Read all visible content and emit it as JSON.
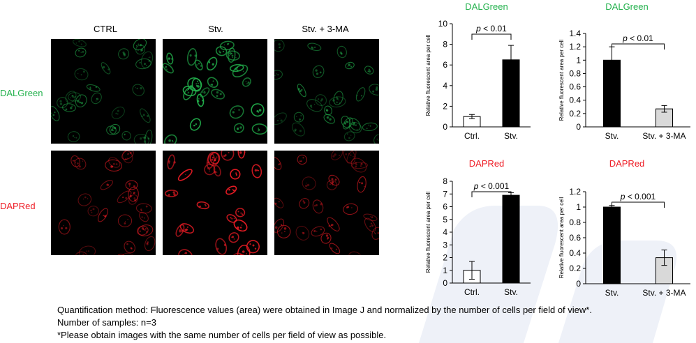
{
  "colors": {
    "green": "#22b14c",
    "red": "#ee1c25",
    "stv_bar": "#000000",
    "ctrl_bar": "#ffffff",
    "ma_bar": "#d9d9d9"
  },
  "microscopy": {
    "columns": [
      "CTRL",
      "Stv.",
      "Stv. + 3-MA"
    ],
    "rows": [
      "DALGreen",
      "DAPRed"
    ]
  },
  "chart_data": [
    {
      "type": "bar",
      "title": "DALGreen",
      "categories": [
        "Ctrl.",
        "Stv."
      ],
      "values": [
        1.0,
        6.5
      ],
      "errors": [
        0.2,
        1.4
      ],
      "ylabel": "Relative fluorescent area per cell",
      "ylim": [
        0,
        10
      ],
      "yticks": [
        "0",
        "2",
        "4",
        "6",
        "8",
        "10"
      ],
      "annotation": "p < 0.01"
    },
    {
      "type": "bar",
      "title": "DALGreen",
      "categories": [
        "Stv.",
        "Stv. + 3-MA"
      ],
      "values": [
        1.0,
        0.27
      ],
      "errors": [
        0.2,
        0.05
      ],
      "ylabel": "Relative fluorescent area per cell",
      "ylim": [
        0,
        1.4
      ],
      "yticks": [
        "0",
        "0.2",
        "0.4",
        "0.6",
        "0.8",
        "1",
        "1.2",
        "1.4"
      ],
      "annotation": "p < 0.01"
    },
    {
      "type": "bar",
      "title": "DAPRed",
      "categories": [
        "Ctrl.",
        "Stv."
      ],
      "values": [
        1.0,
        6.9
      ],
      "errors": [
        0.7,
        0.2
      ],
      "ylabel": "Relative fluorescent area per cell",
      "ylim": [
        0,
        8
      ],
      "yticks": [
        "0",
        "1",
        "2",
        "3",
        "4",
        "5",
        "6",
        "7",
        "8"
      ],
      "annotation": "p < 0.001"
    },
    {
      "type": "bar",
      "title": "DAPRed",
      "categories": [
        "Stv.",
        "Stv. + 3-MA"
      ],
      "values": [
        1.0,
        0.34
      ],
      "errors": [
        0.02,
        0.1
      ],
      "ylabel": "Relative fluorescent area per cell",
      "ylim": [
        0,
        1.2
      ],
      "yticks": [
        "0",
        "0.2",
        "0.4",
        "0.6",
        "0.8",
        "1",
        "1.2"
      ],
      "annotation": "p < 0.001"
    }
  ],
  "notes": {
    "line1": "Quantification method: Fluorescence values (area) were obtained in Image J and normalized by the number of cells per field of view*.",
    "line2": "Number of samples: n=3",
    "line3": "*Please obtain images with the same number of cells per field of view as possible."
  }
}
